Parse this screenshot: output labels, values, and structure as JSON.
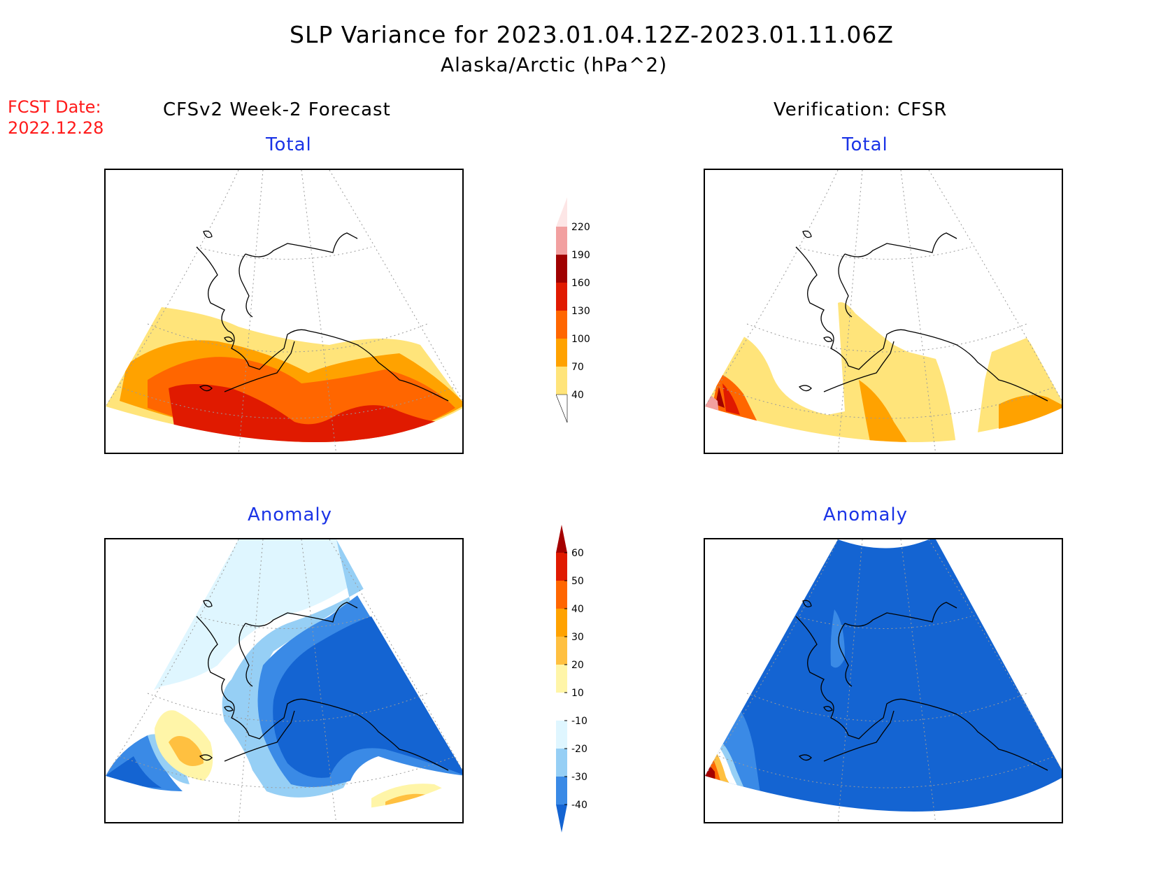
{
  "header": {
    "title": "SLP Variance for 2023.01.04.12Z-2023.01.11.06Z",
    "subtitle": "Alaska/Arctic (hPa^2)"
  },
  "fcst": {
    "line1": "FCST Date:",
    "line2": "2022.12.28"
  },
  "columns": {
    "left": "CFSv2 Week-2 Forecast",
    "right": "Verification: CFSR"
  },
  "panels": {
    "top_left": "Total",
    "top_right": "Total",
    "bottom_left": "Anomaly",
    "bottom_right": "Anomaly"
  },
  "colorbars": {
    "total": {
      "levels": [
        "220",
        "190",
        "160",
        "130",
        "100",
        "70",
        "40"
      ],
      "colors": [
        "#fde6e6",
        "#f2a0a0",
        "#a00000",
        "#e01a00",
        "#ff6600",
        "#ffa200",
        "#ffe47a"
      ]
    },
    "anomaly": {
      "levels": [
        "60",
        "50",
        "40",
        "30",
        "20",
        "10",
        "-10",
        "-20",
        "-30",
        "-40"
      ],
      "colors": [
        "#a50000",
        "#e01a00",
        "#ff6600",
        "#ffa200",
        "#ffc040",
        "#fff5a8",
        "#ffffff",
        "#dff6ff",
        "#96cff5",
        "#3a8ae6",
        "#1464d2"
      ]
    }
  }
}
